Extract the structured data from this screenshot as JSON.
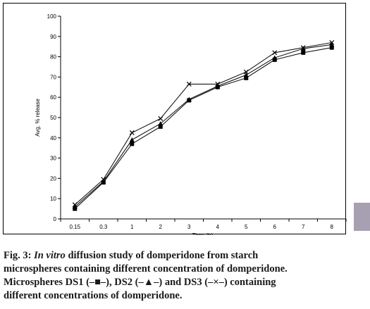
{
  "chart_data": {
    "type": "line",
    "categories": [
      "0.15",
      "0.3",
      "1",
      "2",
      "3",
      "4",
      "5",
      "6",
      "7",
      "8"
    ],
    "series": [
      {
        "name": "DS1",
        "marker": "square",
        "values": [
          5,
          18,
          37,
          45.5,
          58.5,
          65,
          69.5,
          78.5,
          82,
          84.5
        ]
      },
      {
        "name": "DS2",
        "marker": "triangle",
        "values": [
          6,
          18.5,
          39,
          47,
          59,
          65.5,
          71,
          79.5,
          84,
          86
        ]
      },
      {
        "name": "DS3",
        "marker": "x",
        "values": [
          7,
          19.5,
          42.5,
          49.5,
          66.5,
          66.5,
          72.5,
          82,
          84.5,
          87
        ]
      }
    ],
    "xlabel": "Time (h).",
    "ylabel": "Avg. % release",
    "ylim": [
      0,
      100
    ],
    "yticks": [
      0,
      10,
      20,
      30,
      40,
      50,
      60,
      70,
      80,
      90,
      100
    ],
    "grid": false,
    "line_color": "#000000"
  },
  "caption": {
    "label": "Fig. 3:",
    "italic": "In vitro",
    "line1": "diffusion study of domperidone from starch",
    "line2": "microspheres containing different concentration of domperidone.",
    "line3a": "Microspheres DS1 (",
    "sym1": "–■–",
    "line3b": "), DS2 (",
    "sym2": "–▲–",
    "line3c": ") and DS3 (",
    "sym3": "–×–",
    "line3d": ") containing",
    "line4": "different concentrations of domperidone."
  },
  "colors": {
    "tab": "#a7a0b2",
    "caption_text": "#1a1a1a"
  }
}
